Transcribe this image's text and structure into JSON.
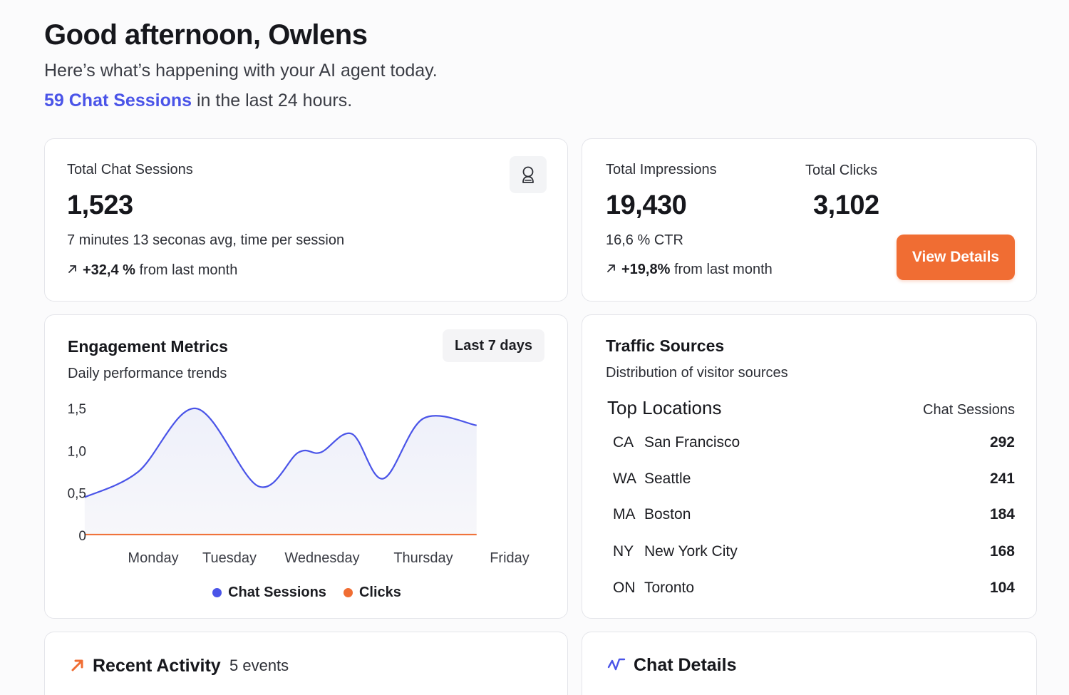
{
  "greeting": {
    "title": "Good afternoon, Owlens",
    "subtitle": "Here’s what’s happening with your AI agent today.",
    "sessions_highlight": "59 Chat Sessions",
    "sessions_suffix": " in the last 24 hours."
  },
  "sessions_card": {
    "label": "Total Chat Sessions",
    "value": "1,523",
    "avg_time": "7 minutes 13 seconas avg, time per session",
    "trend_value": "+32,4 %",
    "trend_suffix": " from last month",
    "icon": "user-badge-icon"
  },
  "impressions_card": {
    "impressions_label": "Total Impressions",
    "impressions_value": "19,430",
    "clicks_label": "Total Clicks",
    "clicks_value": "3,102",
    "ctr": "16,6 % CTR",
    "trend_value": "+19,8%",
    "trend_suffix": " from last month",
    "button_label": "View Details"
  },
  "engagement": {
    "title": "Engagement Metrics",
    "subtitle": "Daily performance trends",
    "range_label": "Last 7 days"
  },
  "chart_data": {
    "type": "area",
    "x": [
      "Monday",
      "Tuesday",
      "Wednesday",
      "Thursday",
      "Friday"
    ],
    "y_ticks": [
      "0",
      "0,5",
      "1,0",
      "1,5"
    ],
    "ylim": [
      0,
      1.5
    ],
    "series": [
      {
        "name": "Chat Sessions",
        "color": "#4a54e8",
        "points": [
          [
            0,
            0.45
          ],
          [
            0.6,
            0.75
          ],
          [
            1.25,
            1.5
          ],
          [
            1.95,
            0.58
          ],
          [
            2.4,
            0.98
          ],
          [
            2.65,
            0.98
          ],
          [
            3.0,
            1.2
          ],
          [
            3.35,
            0.67
          ],
          [
            3.8,
            1.38
          ],
          [
            4.4,
            1.3
          ]
        ]
      },
      {
        "name": "Clicks",
        "color": "#f06d33",
        "points": [
          [
            0,
            0.01
          ],
          [
            1,
            0.01
          ],
          [
            2,
            0.01
          ],
          [
            3,
            0.01
          ],
          [
            4,
            0.01
          ],
          [
            4.4,
            0.01
          ]
        ]
      }
    ],
    "grid": false,
    "legend_position": "bottom-center"
  },
  "traffic": {
    "title": "Traffic Sources",
    "subtitle": "Distribution of visitor sources",
    "locations_title": "Top Locations",
    "locations_metric": "Chat Sessions",
    "locations": [
      {
        "code": "CA",
        "city": "San Francisco",
        "value": "292"
      },
      {
        "code": "WA",
        "city": "Seattle",
        "value": "241"
      },
      {
        "code": "MA",
        "city": "Boston",
        "value": "184"
      },
      {
        "code": "NY",
        "city": "New York City",
        "value": "168"
      },
      {
        "code": "ON",
        "city": "Toronto",
        "value": "104"
      }
    ]
  },
  "activity": {
    "title": "Recent Activity",
    "count": "5 events",
    "icon": "arrow-up-right-icon"
  },
  "chat_details": {
    "title": "Chat Details",
    "icon": "activity-icon"
  },
  "colors": {
    "accent": "#4a54e8",
    "orange": "#f06d33"
  }
}
